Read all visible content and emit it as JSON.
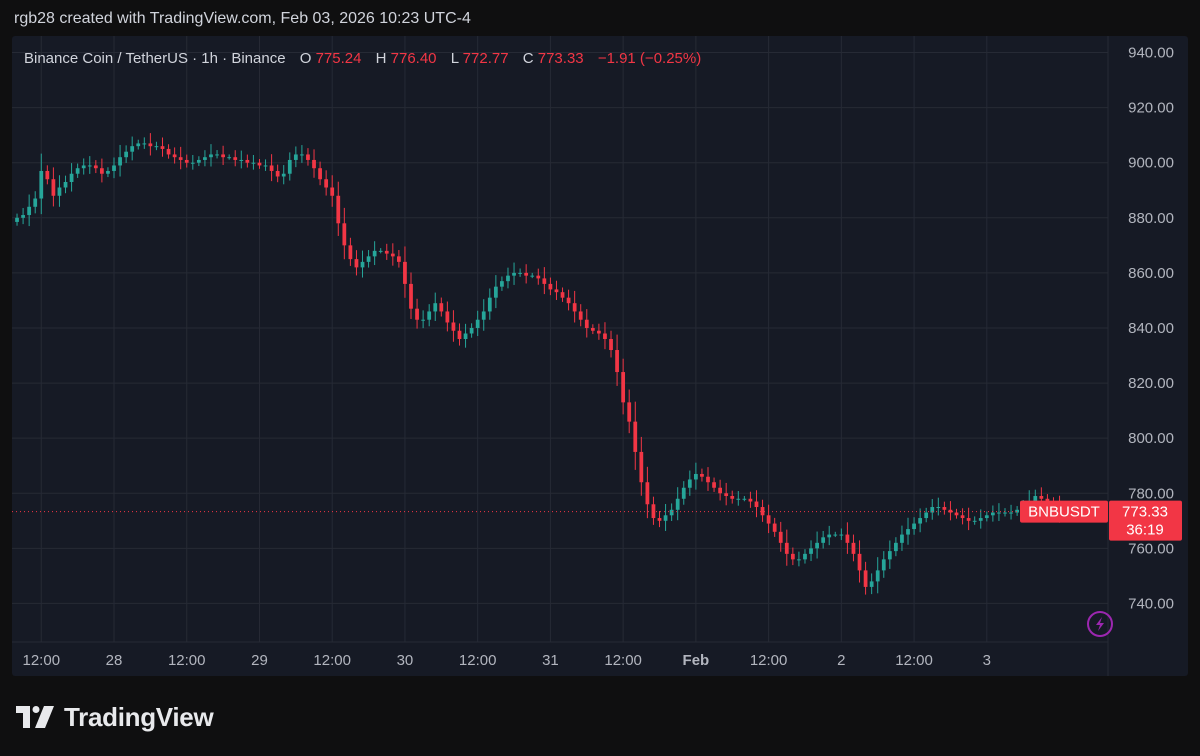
{
  "attribution": "rgb28 created with TradingView.com, Feb 03, 2026 10:23 UTC-4",
  "brand": {
    "name": "TradingView"
  },
  "legend": {
    "symbol": "Binance Coin / TetherUS · 1h · Binance",
    "o_label": "O",
    "o_value": "775.24",
    "h_label": "H",
    "h_value": "776.40",
    "l_label": "L",
    "l_value": "772.77",
    "c_label": "C",
    "c_value": "773.33",
    "change": "−1.91 (−0.25%)"
  },
  "price_tag": {
    "ticker": "BNBUSDT",
    "price": "773.33",
    "countdown": "36:19"
  },
  "colors": {
    "background": "#0f0f10",
    "pane": "#161a25",
    "grid": "#262a35",
    "up": "#26a69a",
    "down": "#f23645",
    "text": "#d1d4dc",
    "axis_text": "#b2b5be",
    "icon_accent": "#9c27b0"
  },
  "icons": {
    "brand_logo": "tradingview-logo-icon",
    "flash": "lightning-icon"
  },
  "chart_data": {
    "type": "candlestick",
    "title": "Binance Coin / TetherUS · 1h · Binance",
    "interval": "1h",
    "ylim": [
      726,
      946
    ],
    "y_ticks": [
      740,
      760,
      780,
      800,
      820,
      840,
      860,
      880,
      900,
      920,
      940
    ],
    "y_tick_labels": [
      "740.00",
      "760.00",
      "780.00",
      "800.00",
      "820.00",
      "840.00",
      "860.00",
      "880.00",
      "900.00",
      "920.00",
      "940.00"
    ],
    "x_ticks": [
      {
        "label": "12:00",
        "index": 4
      },
      {
        "label": "28",
        "index": 16
      },
      {
        "label": "12:00",
        "index": 28
      },
      {
        "label": "29",
        "index": 40
      },
      {
        "label": "12:00",
        "index": 52
      },
      {
        "label": "30",
        "index": 64
      },
      {
        "label": "12:00",
        "index": 76
      },
      {
        "label": "31",
        "index": 88
      },
      {
        "label": "12:00",
        "index": 100
      },
      {
        "label": "Feb",
        "index": 112
      },
      {
        "label": "12:00",
        "index": 124
      },
      {
        "label": "2",
        "index": 136
      },
      {
        "label": "12:00",
        "index": 148
      },
      {
        "label": "3",
        "index": 160
      }
    ],
    "last_price": 773.33,
    "closes": [
      880,
      881,
      884,
      887,
      897,
      894,
      888,
      891,
      893,
      896,
      898,
      899,
      899,
      898,
      896,
      897,
      899,
      902,
      904,
      906,
      907,
      907,
      906,
      906,
      905,
      903,
      902,
      901,
      900,
      900,
      901,
      902,
      903,
      903,
      902,
      902,
      901,
      901,
      900,
      900,
      899,
      899,
      897,
      895,
      896,
      901,
      903,
      903,
      901,
      898,
      894,
      891,
      888,
      878,
      870,
      865,
      862,
      864,
      866,
      868,
      868,
      867,
      866,
      864,
      856,
      847,
      843,
      843,
      846,
      849,
      846,
      842,
      839,
      836,
      838,
      840,
      843,
      846,
      851,
      855,
      857,
      859,
      860,
      860,
      859,
      859,
      858,
      856,
      854,
      853,
      851,
      849,
      846,
      843,
      840,
      839,
      838,
      836,
      832,
      824,
      813,
      806,
      795,
      784,
      776,
      771,
      770,
      772,
      774,
      778,
      782,
      785,
      787,
      786,
      784,
      782,
      780,
      779,
      778,
      778,
      778,
      777,
      775,
      772,
      769,
      766,
      762,
      758,
      756,
      756,
      758,
      760,
      762,
      764,
      765,
      765,
      765,
      762,
      758,
      752,
      746,
      748,
      752,
      756,
      759,
      762,
      765,
      767,
      769,
      771,
      773,
      775,
      775,
      774,
      773,
      772,
      771,
      770,
      770,
      771,
      772,
      773,
      773,
      773,
      773,
      774,
      775,
      777,
      779,
      778,
      776,
      775,
      773,
      773,
      773,
      774,
      773,
      773,
      773,
      773
    ],
    "notes": "closes are approximate hourly closing prices read off the chart"
  }
}
